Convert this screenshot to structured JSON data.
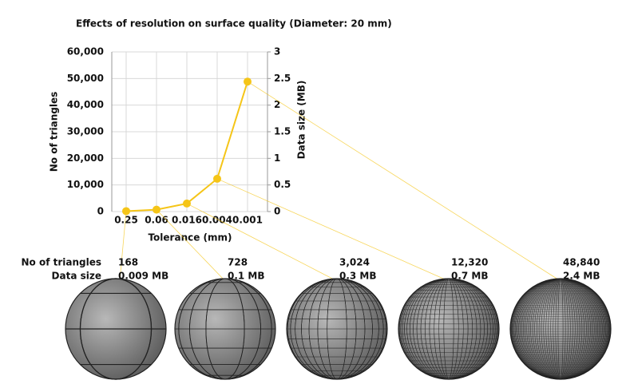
{
  "chart_data": {
    "type": "line",
    "title": "Effects of resolution on surface quality (Diameter: 20 mm)",
    "x_label": "Tolerance (mm)",
    "y_label": "No of triangles",
    "y2_label": "Data size (MB)",
    "categories": [
      "0.25",
      "0.06",
      "0.016",
      "0.004",
      "0.001"
    ],
    "series": [
      {
        "color": "#f5c518",
        "values": [
          168,
          728,
          3024,
          12320,
          48840
        ],
        "value_labels": [
          "168",
          "728",
          "3,024",
          "12,320",
          "48,840"
        ]
      }
    ],
    "data_size": {
      "label": "Data size",
      "values": [
        0.009,
        0.1,
        0.3,
        0.7,
        2.4
      ],
      "value_labels": [
        "0.009 MB",
        "0.1 MB",
        "0.3 MB",
        "0.7 MB",
        "2.4 MB"
      ]
    },
    "ylim": [
      0,
      60000
    ],
    "yticks": [
      0,
      {
        "value": 10000,
        "label": "10,000"
      },
      {
        "value": 20000,
        "label": "20,000"
      },
      {
        "value": 30000,
        "label": "30,000"
      },
      {
        "value": 40000,
        "label": "40,000"
      },
      {
        "value": 50000,
        "label": "50,000"
      },
      {
        "value": 60000,
        "label": "60,000"
      }
    ],
    "y2lim": [
      0,
      3
    ],
    "y2ticks": [
      0,
      0.5,
      1,
      1.5,
      2,
      2.5,
      3
    ],
    "grid": true
  }
}
